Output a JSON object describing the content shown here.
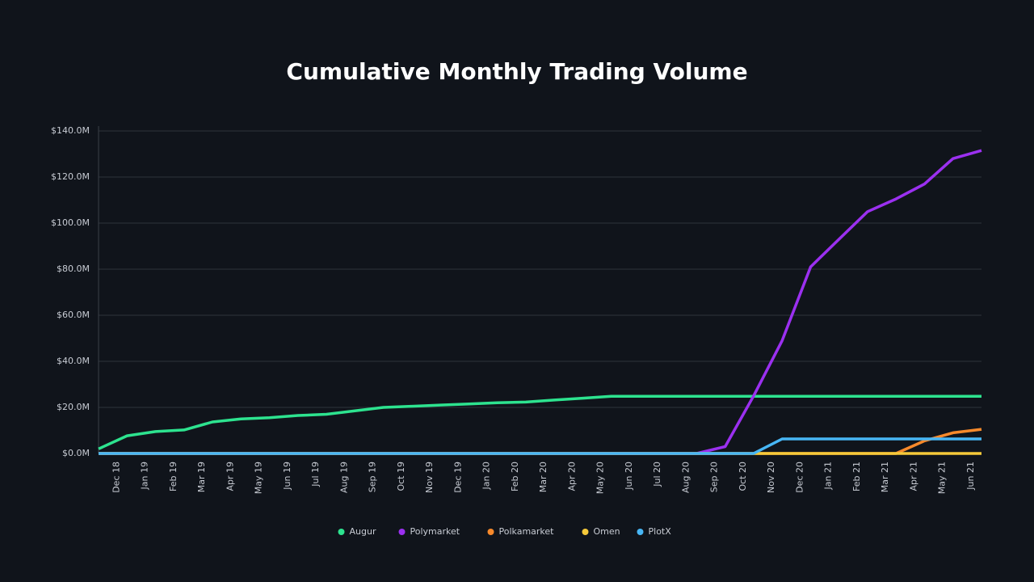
{
  "chart_data": {
    "type": "line",
    "title": "Cumulative Monthly Trading Volume",
    "categories": [
      null,
      "Dec 18",
      "Jan 19",
      "Feb 19",
      "Mar 19",
      "Apr 19",
      "May 19",
      "Jun 19",
      "Jul 19",
      "Aug 19",
      "Sep 19",
      "Oct 19",
      "Nov 19",
      "Dec 19",
      "Jan 20",
      "Feb 20",
      "Mar 20",
      "Apr 20",
      "May 20",
      "Jun 20",
      "Jul 20",
      "Aug 20",
      "Sep 20",
      "Oct 20",
      "Nov 20",
      "Dec 20",
      "Jan 21",
      "Feb 21",
      "Mar 21",
      "Apr 21",
      "May 21",
      "Jun 21"
    ],
    "series": [
      {
        "name": "Augur",
        "color": "#2de38f",
        "values": [
          2,
          7.7,
          9.5,
          10.2,
          13.7,
          15,
          15.5,
          16.5,
          17,
          18.5,
          20,
          20.5,
          21,
          21.5,
          22,
          22.3,
          23.2,
          24,
          24.8,
          24.8,
          24.8,
          24.8,
          24.8,
          24.8,
          24.8,
          24.8,
          24.8,
          24.8,
          24.8,
          24.8,
          24.8,
          24.8
        ]
      },
      {
        "name": "Polymarket",
        "color": "#9b30f0",
        "values": [
          0,
          0,
          0,
          0,
          0,
          0,
          0,
          0,
          0,
          0,
          0,
          0,
          0,
          0,
          0,
          0,
          0,
          0,
          0,
          0,
          0,
          0,
          3,
          25,
          49,
          81,
          93,
          105,
          110.5,
          117,
          128,
          131.5
        ]
      },
      {
        "name": "Polkamarket",
        "color": "#f7892b",
        "values": [
          0,
          0,
          0,
          0,
          0,
          0,
          0,
          0,
          0,
          0,
          0,
          0,
          0,
          0,
          0,
          0,
          0,
          0,
          0,
          0,
          0,
          0,
          0,
          0,
          0,
          0,
          0,
          0,
          0,
          5.5,
          9,
          10.5
        ]
      },
      {
        "name": "Omen",
        "color": "#f5c93a",
        "values": [
          0,
          0,
          0,
          0,
          0,
          0,
          0,
          0,
          0,
          0,
          0,
          0,
          0,
          0,
          0,
          0,
          0,
          0,
          0,
          0,
          0,
          0,
          0,
          0,
          0,
          0,
          0,
          0,
          0,
          0,
          0,
          0
        ]
      },
      {
        "name": "PlotX",
        "color": "#47b6f5",
        "values": [
          0,
          0,
          0,
          0,
          0,
          0,
          0,
          0,
          0,
          0,
          0,
          0,
          0,
          0,
          0,
          0,
          0,
          0,
          0,
          0,
          0,
          0,
          0,
          0,
          6.3,
          6.3,
          6.3,
          6.3,
          6.3,
          6.3,
          6.3,
          6.3
        ]
      }
    ],
    "ylim": [
      0,
      140
    ],
    "yticks": [
      {
        "value": 0,
        "label": "$0.0M"
      },
      {
        "value": 20,
        "label": "$20.0M"
      },
      {
        "value": 40,
        "label": "$40.0M"
      },
      {
        "value": 60,
        "label": "$60.0M"
      },
      {
        "value": 80,
        "label": "$80.0M"
      },
      {
        "value": 100,
        "label": "$100.0M"
      },
      {
        "value": 120,
        "label": "$120.0M"
      },
      {
        "value": 140,
        "label": "$140.0M"
      }
    ],
    "grid": true,
    "legend": "bottom"
  }
}
